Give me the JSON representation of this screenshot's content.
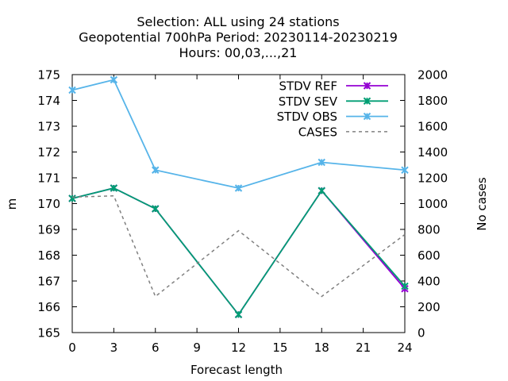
{
  "chart_data": {
    "type": "line",
    "title_lines": [
      "Selection: ALL using    24 stations",
      "Geopotential 700hPa   Period: 20230114-20230219",
      "Hours:  00,03,...,21"
    ],
    "xlabel": "Forecast length",
    "ylabel": "m",
    "y2label": "No cases",
    "xlim": [
      0,
      24
    ],
    "ylim": [
      165,
      175
    ],
    "y2lim": [
      0,
      2000
    ],
    "xticks": [
      0,
      3,
      6,
      9,
      12,
      15,
      18,
      21,
      24
    ],
    "yticks": [
      165,
      166,
      167,
      168,
      169,
      170,
      171,
      172,
      173,
      174,
      175
    ],
    "y2ticks": [
      0,
      200,
      400,
      600,
      800,
      1000,
      1200,
      1400,
      1600,
      1800,
      2000
    ],
    "legend_position": "top-right",
    "series": [
      {
        "name": "STDV REF",
        "axis": "y",
        "color": "#9400d3",
        "marker": "x",
        "dashed": false,
        "x": [
          0,
          3,
          6,
          12,
          18,
          24
        ],
        "values": [
          170.2,
          170.6,
          169.8,
          165.7,
          170.5,
          166.7
        ]
      },
      {
        "name": "STDV SEV",
        "axis": "y",
        "color": "#009e73",
        "marker": "x",
        "dashed": false,
        "x": [
          0,
          3,
          6,
          12,
          18,
          24
        ],
        "values": [
          170.2,
          170.6,
          169.8,
          165.7,
          170.5,
          166.8
        ]
      },
      {
        "name": "STDV OBS",
        "axis": "y",
        "color": "#56b4e9",
        "marker": "x",
        "dashed": false,
        "x": [
          0,
          3,
          6,
          12,
          18,
          24
        ],
        "values": [
          174.4,
          174.8,
          171.3,
          170.6,
          171.6,
          171.3
        ]
      },
      {
        "name": "CASES",
        "axis": "y2",
        "color": "#808080",
        "marker": "none",
        "dashed": true,
        "x": [
          0,
          3,
          6,
          12,
          18,
          24
        ],
        "values": [
          1050,
          1060,
          280,
          790,
          280,
          760
        ]
      }
    ]
  }
}
